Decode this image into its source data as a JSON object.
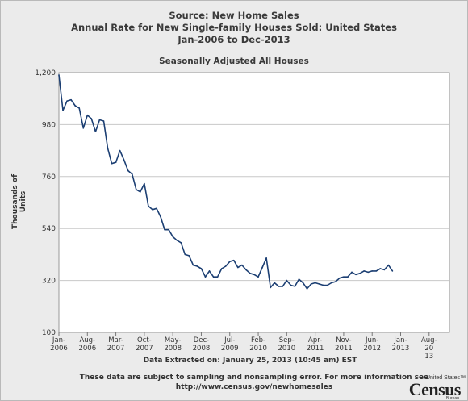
{
  "header": {
    "line1": "Source: New Home Sales",
    "line2": "Annual Rate for New Single-family Houses Sold: United States",
    "line3": "Jan-2006 to Dec-2013"
  },
  "footer": {
    "extracted": "Data Extracted on: January 25, 2013 (10:45 am) EST",
    "note_line1": "These data are subject to sampling and nonsampling error. For more information see",
    "note_line2": "http://www.census.gov/newhomesales"
  },
  "logo": {
    "top": "United States™",
    "main": "Census",
    "sub": "Bureau"
  },
  "colors": {
    "line": "#1c3f73",
    "plot_bg": "#ffffff",
    "grid": "#c8c8c8",
    "page_bg": "#ebebeb"
  },
  "chart_data": {
    "type": "line",
    "title": "Seasonally Adjusted All Houses",
    "xlabel": "",
    "ylabel": "Thousands of Units",
    "ylim": [
      100,
      1200
    ],
    "yticks": [
      "100",
      "320",
      "540",
      "760",
      "980",
      "1,200"
    ],
    "xticks": [
      {
        "month_index": 0,
        "label": "Jan-\n2006"
      },
      {
        "month_index": 7,
        "label": "Aug-\n2006"
      },
      {
        "month_index": 14,
        "label": "Mar-\n2007"
      },
      {
        "month_index": 21,
        "label": "Oct-\n2007"
      },
      {
        "month_index": 28,
        "label": "May-\n2008"
      },
      {
        "month_index": 35,
        "label": "Dec-\n2008"
      },
      {
        "month_index": 42,
        "label": "Jul-\n2009"
      },
      {
        "month_index": 49,
        "label": "Feb-\n2010"
      },
      {
        "month_index": 56,
        "label": "Sep-\n2010"
      },
      {
        "month_index": 63,
        "label": "Apr-\n2011"
      },
      {
        "month_index": 70,
        "label": "Nov-\n2011"
      },
      {
        "month_index": 77,
        "label": "Jun-\n2012"
      },
      {
        "month_index": 84,
        "label": "Jan-\n2013"
      },
      {
        "month_index": 91,
        "label": "Aug-\n20\n13"
      }
    ],
    "x_total_months": 96,
    "grid": true,
    "series": [
      {
        "values": [
          1190,
          1040,
          1080,
          1085,
          1060,
          1050,
          965,
          1020,
          1005,
          950,
          1000,
          995,
          880,
          815,
          820,
          870,
          830,
          785,
          770,
          705,
          695,
          730,
          635,
          620,
          625,
          590,
          535,
          535,
          505,
          490,
          480,
          430,
          425,
          385,
          380,
          370,
          335,
          360,
          335,
          335,
          370,
          380,
          400,
          405,
          375,
          385,
          365,
          350,
          345,
          335,
          375,
          415,
          290,
          310,
          295,
          295,
          320,
          300,
          295,
          325,
          310,
          285,
          305,
          310,
          305,
          300,
          300,
          310,
          315,
          330,
          335,
          335,
          355,
          345,
          350,
          360,
          355,
          360,
          360,
          370,
          365,
          385,
          360
        ]
      }
    ]
  }
}
